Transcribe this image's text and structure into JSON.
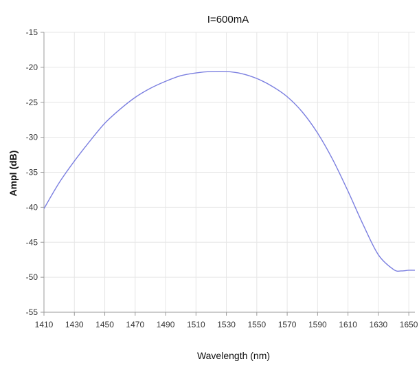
{
  "chart_data": {
    "type": "line",
    "title": "I=600mA",
    "xlabel": "Wavelength (nm)",
    "ylabel": "Ampl (dB)",
    "xlim": [
      1410,
      1654
    ],
    "ylim": [
      -55,
      -15
    ],
    "xticks": [
      1410,
      1430,
      1450,
      1470,
      1490,
      1510,
      1530,
      1550,
      1570,
      1590,
      1610,
      1630,
      1650
    ],
    "yticks": [
      -15,
      -20,
      -25,
      -30,
      -35,
      -40,
      -45,
      -50,
      -55
    ],
    "grid": true,
    "series": [
      {
        "color": "#7b7fe0",
        "x": [
          1410,
          1420,
          1430,
          1440,
          1450,
          1460,
          1470,
          1480,
          1490,
          1500,
          1510,
          1520,
          1530,
          1540,
          1550,
          1560,
          1570,
          1580,
          1590,
          1600,
          1610,
          1620,
          1630,
          1640,
          1645,
          1650,
          1654
        ],
        "y": [
          -40.2,
          -36.5,
          -33.4,
          -30.6,
          -28.0,
          -26.0,
          -24.3,
          -23.0,
          -22.0,
          -21.2,
          -20.8,
          -20.6,
          -20.6,
          -20.9,
          -21.6,
          -22.7,
          -24.2,
          -26.4,
          -29.4,
          -33.2,
          -37.7,
          -42.5,
          -46.8,
          -48.9,
          -49.1,
          -49.0,
          -49.0
        ]
      }
    ]
  }
}
